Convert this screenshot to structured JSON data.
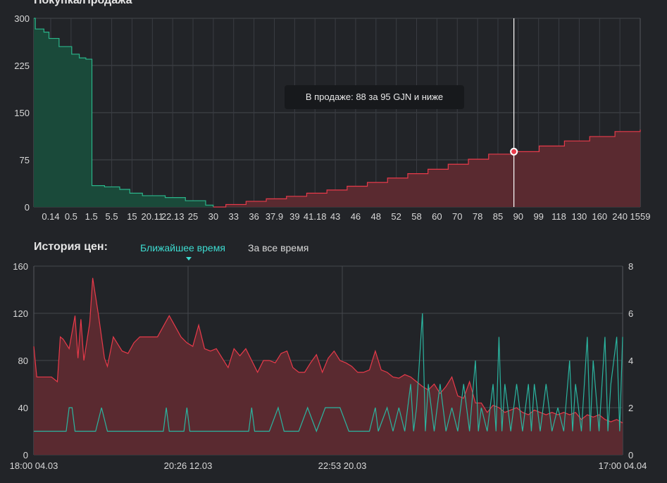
{
  "depth": {
    "title": "Покупка/Продажа",
    "tooltip": "В продаже: 88 за 95 GJN и ниже",
    "colors": {
      "buy": "#2bb58a",
      "buy_fill": "#1a4a3a",
      "sell": "#e83a4a",
      "sell_fill": "#5a2a30"
    }
  },
  "history": {
    "title": "История цен:",
    "tabs": [
      {
        "label": "Ближайшее время",
        "active": true
      },
      {
        "label": "За все время",
        "active": false
      }
    ],
    "colors": {
      "price": "#e83a4a",
      "price_fill": "#5a2a30",
      "volume": "#2bb5a0"
    }
  },
  "chart_data": [
    {
      "type": "area",
      "title": "Покупка/Продажа",
      "xlabel": "",
      "ylabel": "",
      "ylim": [
        0,
        300
      ],
      "yticks": [
        0,
        75,
        150,
        225,
        300
      ],
      "xticks": [
        "0.14",
        "0.5",
        "1.5",
        "5.5",
        "15",
        "20.11",
        "22.13",
        "25",
        "30",
        "33",
        "36",
        "37.9",
        "39",
        "41.18",
        "43",
        "46",
        "48",
        "52",
        "58",
        "60",
        "70",
        "78",
        "85",
        "90",
        "99",
        "118",
        "130",
        "160",
        "240",
        "1559"
      ],
      "grid": true,
      "series": [
        {
          "values": [
            {
              "x": 0.0,
              "y": 300
            },
            {
              "x": 0.3,
              "y": 283
            },
            {
              "x": 2.0,
              "y": 278
            },
            {
              "x": 3.0,
              "y": 268
            },
            {
              "x": 5.0,
              "y": 255
            },
            {
              "x": 7.5,
              "y": 243
            },
            {
              "x": 9.0,
              "y": 237
            },
            {
              "x": 10.3,
              "y": 235
            },
            {
              "x": 11.5,
              "y": 34
            },
            {
              "x": 14.0,
              "y": 32
            },
            {
              "x": 17.0,
              "y": 28
            },
            {
              "x": 19.0,
              "y": 22
            },
            {
              "x": 21.5,
              "y": 18
            },
            {
              "x": 26.0,
              "y": 15
            },
            {
              "x": 30.0,
              "y": 10
            },
            {
              "x": 34.0,
              "y": 3
            },
            {
              "x": 35.5,
              "y": 0
            }
          ]
        },
        {
          "values": [
            {
              "x": 35.5,
              "y": 0
            },
            {
              "x": 38.0,
              "y": 4
            },
            {
              "x": 42.0,
              "y": 9
            },
            {
              "x": 46.0,
              "y": 13
            },
            {
              "x": 50.0,
              "y": 17
            },
            {
              "x": 54.0,
              "y": 22
            },
            {
              "x": 58.0,
              "y": 27
            },
            {
              "x": 62.0,
              "y": 33
            },
            {
              "x": 66.0,
              "y": 39
            },
            {
              "x": 70.0,
              "y": 46
            },
            {
              "x": 74.0,
              "y": 53
            },
            {
              "x": 78.0,
              "y": 60
            },
            {
              "x": 82.0,
              "y": 68
            },
            {
              "x": 86.0,
              "y": 76
            },
            {
              "x": 90.0,
              "y": 84
            },
            {
              "x": 95.0,
              "y": 88
            },
            {
              "x": 100.0,
              "y": 97
            },
            {
              "x": 105.0,
              "y": 105
            },
            {
              "x": 110.0,
              "y": 112
            },
            {
              "x": 115.0,
              "y": 120
            },
            {
              "x": 120.0,
              "y": 123
            }
          ]
        }
      ],
      "marker": {
        "x": 95.0,
        "y": 88
      }
    },
    {
      "type": "line",
      "title": "",
      "xlabel": "",
      "ylabel": "",
      "ylim": [
        0,
        160
      ],
      "yticks": [
        0,
        40,
        80,
        120,
        160
      ],
      "y2lim": [
        0,
        8
      ],
      "y2ticks": [
        0,
        2,
        4,
        6,
        8
      ],
      "xticks": [
        "18:00 04.03",
        "20:26 12.03",
        "22:53 20.03",
        "17:00 04.04"
      ],
      "grid": true,
      "series": [
        {
          "name": "",
          "axis": "left",
          "values": [
            {
              "x": 0.0,
              "y": 92
            },
            {
              "x": 0.5,
              "y": 66
            },
            {
              "x": 3.0,
              "y": 66
            },
            {
              "x": 4.0,
              "y": 62
            },
            {
              "x": 4.5,
              "y": 100
            },
            {
              "x": 5.0,
              "y": 98
            },
            {
              "x": 6.0,
              "y": 90
            },
            {
              "x": 7.0,
              "y": 118
            },
            {
              "x": 7.5,
              "y": 82
            },
            {
              "x": 8.0,
              "y": 115
            },
            {
              "x": 8.5,
              "y": 80
            },
            {
              "x": 9.5,
              "y": 112
            },
            {
              "x": 10.0,
              "y": 150
            },
            {
              "x": 11.0,
              "y": 118
            },
            {
              "x": 12.0,
              "y": 82
            },
            {
              "x": 12.5,
              "y": 75
            },
            {
              "x": 13.5,
              "y": 100
            },
            {
              "x": 14.5,
              "y": 92
            },
            {
              "x": 15.0,
              "y": 88
            },
            {
              "x": 16.0,
              "y": 86
            },
            {
              "x": 17.0,
              "y": 95
            },
            {
              "x": 18.0,
              "y": 100
            },
            {
              "x": 20.0,
              "y": 100
            },
            {
              "x": 21.0,
              "y": 100
            },
            {
              "x": 23.0,
              "y": 118
            },
            {
              "x": 25.0,
              "y": 100
            },
            {
              "x": 26.0,
              "y": 95
            },
            {
              "x": 27.0,
              "y": 92
            },
            {
              "x": 28.0,
              "y": 110
            },
            {
              "x": 29.0,
              "y": 90
            },
            {
              "x": 30.0,
              "y": 88
            },
            {
              "x": 31.0,
              "y": 90
            },
            {
              "x": 32.0,
              "y": 82
            },
            {
              "x": 33.0,
              "y": 74
            },
            {
              "x": 34.0,
              "y": 90
            },
            {
              "x": 35.0,
              "y": 84
            },
            {
              "x": 36.0,
              "y": 90
            },
            {
              "x": 37.0,
              "y": 80
            },
            {
              "x": 38.0,
              "y": 70
            },
            {
              "x": 39.0,
              "y": 80
            },
            {
              "x": 40.0,
              "y": 80
            },
            {
              "x": 41.0,
              "y": 78
            },
            {
              "x": 42.0,
              "y": 86
            },
            {
              "x": 43.0,
              "y": 88
            },
            {
              "x": 44.0,
              "y": 74
            },
            {
              "x": 45.0,
              "y": 70
            },
            {
              "x": 46.0,
              "y": 70
            },
            {
              "x": 47.0,
              "y": 78
            },
            {
              "x": 48.0,
              "y": 85
            },
            {
              "x": 49.0,
              "y": 70
            },
            {
              "x": 50.0,
              "y": 82
            },
            {
              "x": 51.0,
              "y": 88
            },
            {
              "x": 52.0,
              "y": 80
            },
            {
              "x": 53.0,
              "y": 78
            },
            {
              "x": 54.0,
              "y": 75
            },
            {
              "x": 55.0,
              "y": 70
            },
            {
              "x": 56.0,
              "y": 70
            },
            {
              "x": 57.0,
              "y": 72
            },
            {
              "x": 58.0,
              "y": 88
            },
            {
              "x": 59.0,
              "y": 72
            },
            {
              "x": 60.0,
              "y": 70
            },
            {
              "x": 61.0,
              "y": 66
            },
            {
              "x": 62.0,
              "y": 65
            },
            {
              "x": 63.0,
              "y": 68
            },
            {
              "x": 64.0,
              "y": 66
            },
            {
              "x": 65.0,
              "y": 62
            },
            {
              "x": 66.0,
              "y": 58
            },
            {
              "x": 67.0,
              "y": 55
            },
            {
              "x": 68.0,
              "y": 60
            },
            {
              "x": 69.0,
              "y": 52
            },
            {
              "x": 70.0,
              "y": 58
            },
            {
              "x": 71.0,
              "y": 66
            },
            {
              "x": 72.0,
              "y": 50
            },
            {
              "x": 73.0,
              "y": 48
            },
            {
              "x": 74.0,
              "y": 62
            },
            {
              "x": 75.0,
              "y": 44
            },
            {
              "x": 76.0,
              "y": 44
            },
            {
              "x": 77.0,
              "y": 36
            },
            {
              "x": 78.0,
              "y": 42
            },
            {
              "x": 79.0,
              "y": 40
            },
            {
              "x": 80.0,
              "y": 36
            },
            {
              "x": 81.0,
              "y": 38
            },
            {
              "x": 82.0,
              "y": 40
            },
            {
              "x": 83.0,
              "y": 36
            },
            {
              "x": 84.0,
              "y": 34
            },
            {
              "x": 85.0,
              "y": 38
            },
            {
              "x": 86.0,
              "y": 36
            },
            {
              "x": 87.0,
              "y": 34
            },
            {
              "x": 88.0,
              "y": 36
            },
            {
              "x": 89.0,
              "y": 34
            },
            {
              "x": 90.0,
              "y": 36
            },
            {
              "x": 91.0,
              "y": 34
            },
            {
              "x": 92.0,
              "y": 36
            },
            {
              "x": 93.0,
              "y": 30
            },
            {
              "x": 94.0,
              "y": 34
            },
            {
              "x": 95.0,
              "y": 32
            },
            {
              "x": 96.0,
              "y": 34
            },
            {
              "x": 97.0,
              "y": 30
            },
            {
              "x": 98.0,
              "y": 28
            },
            {
              "x": 99.0,
              "y": 30
            },
            {
              "x": 100.0,
              "y": 27
            }
          ]
        },
        {
          "name": "",
          "axis": "right",
          "values": [
            {
              "x": 0.0,
              "y": 1
            },
            {
              "x": 5.5,
              "y": 1
            },
            {
              "x": 6.0,
              "y": 2
            },
            {
              "x": 6.5,
              "y": 2
            },
            {
              "x": 7.0,
              "y": 1
            },
            {
              "x": 10.5,
              "y": 1
            },
            {
              "x": 11.5,
              "y": 2
            },
            {
              "x": 12.5,
              "y": 1
            },
            {
              "x": 22.0,
              "y": 1
            },
            {
              "x": 22.5,
              "y": 2
            },
            {
              "x": 23.0,
              "y": 1
            },
            {
              "x": 25.5,
              "y": 1
            },
            {
              "x": 26.0,
              "y": 2
            },
            {
              "x": 26.5,
              "y": 1
            },
            {
              "x": 36.5,
              "y": 1
            },
            {
              "x": 37.0,
              "y": 2
            },
            {
              "x": 37.5,
              "y": 1
            },
            {
              "x": 40.0,
              "y": 1
            },
            {
              "x": 41.5,
              "y": 2
            },
            {
              "x": 42.5,
              "y": 1
            },
            {
              "x": 45.0,
              "y": 1
            },
            {
              "x": 46.5,
              "y": 2
            },
            {
              "x": 48.0,
              "y": 1
            },
            {
              "x": 49.5,
              "y": 2
            },
            {
              "x": 52.0,
              "y": 2
            },
            {
              "x": 53.5,
              "y": 1
            },
            {
              "x": 57.0,
              "y": 1
            },
            {
              "x": 58.0,
              "y": 2
            },
            {
              "x": 58.5,
              "y": 1
            },
            {
              "x": 60.0,
              "y": 2
            },
            {
              "x": 61.0,
              "y": 1
            },
            {
              "x": 62.0,
              "y": 2
            },
            {
              "x": 63.0,
              "y": 1
            },
            {
              "x": 64.0,
              "y": 3
            },
            {
              "x": 64.5,
              "y": 1
            },
            {
              "x": 65.0,
              "y": 2
            },
            {
              "x": 66.0,
              "y": 6
            },
            {
              "x": 66.5,
              "y": 1
            },
            {
              "x": 67.0,
              "y": 3
            },
            {
              "x": 68.0,
              "y": 1
            },
            {
              "x": 69.0,
              "y": 3
            },
            {
              "x": 70.0,
              "y": 1
            },
            {
              "x": 71.0,
              "y": 2
            },
            {
              "x": 72.0,
              "y": 1
            },
            {
              "x": 73.0,
              "y": 3
            },
            {
              "x": 74.0,
              "y": 1
            },
            {
              "x": 75.0,
              "y": 4
            },
            {
              "x": 75.5,
              "y": 1
            },
            {
              "x": 76.0,
              "y": 2
            },
            {
              "x": 77.0,
              "y": 1
            },
            {
              "x": 78.0,
              "y": 3
            },
            {
              "x": 78.5,
              "y": 1
            },
            {
              "x": 79.0,
              "y": 5
            },
            {
              "x": 79.5,
              "y": 1
            },
            {
              "x": 80.0,
              "y": 3
            },
            {
              "x": 81.0,
              "y": 1
            },
            {
              "x": 82.0,
              "y": 3
            },
            {
              "x": 83.0,
              "y": 1
            },
            {
              "x": 84.0,
              "y": 3
            },
            {
              "x": 84.5,
              "y": 1
            },
            {
              "x": 85.0,
              "y": 3
            },
            {
              "x": 86.0,
              "y": 1
            },
            {
              "x": 87.0,
              "y": 3
            },
            {
              "x": 88.0,
              "y": 1
            },
            {
              "x": 89.0,
              "y": 2
            },
            {
              "x": 90.0,
              "y": 1
            },
            {
              "x": 91.0,
              "y": 4
            },
            {
              "x": 91.5,
              "y": 1
            },
            {
              "x": 92.0,
              "y": 3
            },
            {
              "x": 93.0,
              "y": 1
            },
            {
              "x": 94.0,
              "y": 5
            },
            {
              "x": 94.5,
              "y": 1
            },
            {
              "x": 95.0,
              "y": 4
            },
            {
              "x": 96.0,
              "y": 1
            },
            {
              "x": 97.0,
              "y": 5
            },
            {
              "x": 97.5,
              "y": 1
            },
            {
              "x": 98.0,
              "y": 3
            },
            {
              "x": 99.0,
              "y": 5
            },
            {
              "x": 99.5,
              "y": 1
            },
            {
              "x": 100.0,
              "y": 5
            }
          ]
        }
      ]
    }
  ]
}
